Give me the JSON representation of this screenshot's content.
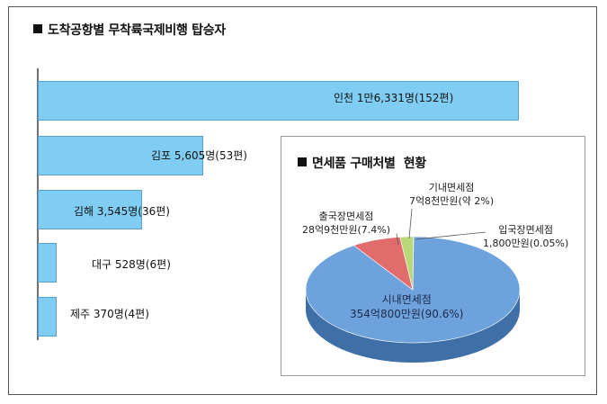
{
  "bar_chart": {
    "title": "도착공항별 무착륙국제비행 탑승자",
    "labels": [
      "인천 1만6,331명(152편)",
      "김포 5,605명(53편)",
      "김해 3,545명(36편)",
      "대구 528명(6편)",
      "제주 370명(4편)"
    ]
  },
  "pie_chart": {
    "title": "면세품 구매처별  현황",
    "labels": {
      "city": [
        "시내면세점",
        "354억800만원(90.6%)"
      ],
      "departure": [
        "출국장면세점",
        "28억9천만원(7.4%)"
      ],
      "inflight": [
        "기내면세점",
        "7억8천만원(약 2%)"
      ],
      "arrival": [
        "입국장면세점",
        "1,800만원(0.05%)"
      ]
    }
  },
  "chart_data": [
    {
      "type": "bar",
      "orientation": "horizontal",
      "title": "도착공항별 무착륙국제비행 탑승자",
      "categories": [
        "인천",
        "김포",
        "김해",
        "대구",
        "제주"
      ],
      "values": [
        16331,
        5605,
        3545,
        528,
        370
      ],
      "flights": [
        152,
        53,
        36,
        6,
        4
      ],
      "color": "#7fcdf2",
      "grid": false
    },
    {
      "type": "pie",
      "title": "면세품 구매처별  현황",
      "categories": [
        "시내면세점",
        "출국장면세점",
        "기내면세점",
        "입국장면세점"
      ],
      "values": [
        90.6,
        7.4,
        2,
        0.05
      ],
      "amounts": [
        "354억800만원",
        "28억9천만원",
        "7억8천만원",
        "1,800만원"
      ],
      "colors": [
        "#6ea2dc",
        "#e26b6b",
        "#b9d877",
        "#8064a2"
      ],
      "style": "3d"
    }
  ]
}
